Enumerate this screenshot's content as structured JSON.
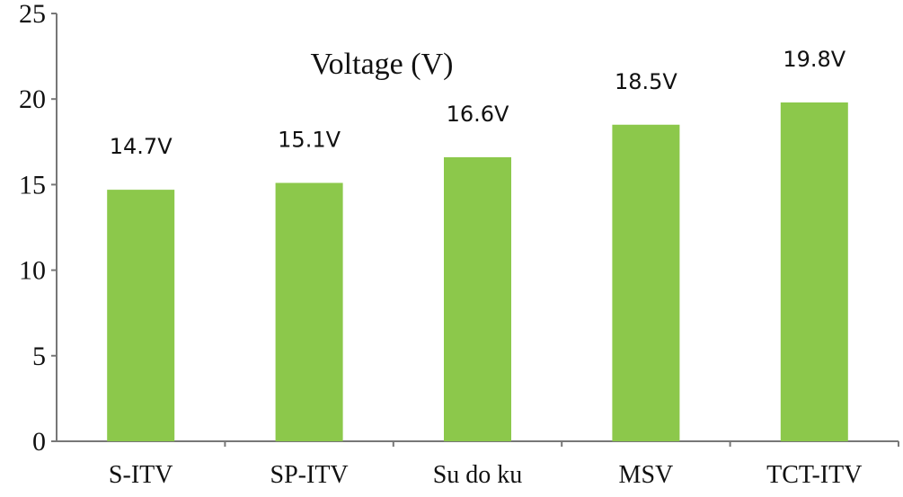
{
  "chart_data": {
    "type": "bar",
    "title": "Voltage (V)",
    "categories": [
      "S-ITV",
      "SP-ITV",
      "Su do ku",
      "MSV",
      "TCT-ITV"
    ],
    "values": [
      14.7,
      15.1,
      16.6,
      18.5,
      19.8
    ],
    "data_labels": [
      "14.7V",
      "15.1V",
      "16.6V",
      "18.5V",
      "19.8V"
    ],
    "ylim": [
      0,
      25
    ],
    "yticks": [
      "0",
      "5",
      "10",
      "15",
      "20",
      "25"
    ],
    "bar_color": "#8cc84b",
    "grid": false,
    "legend": "none"
  }
}
